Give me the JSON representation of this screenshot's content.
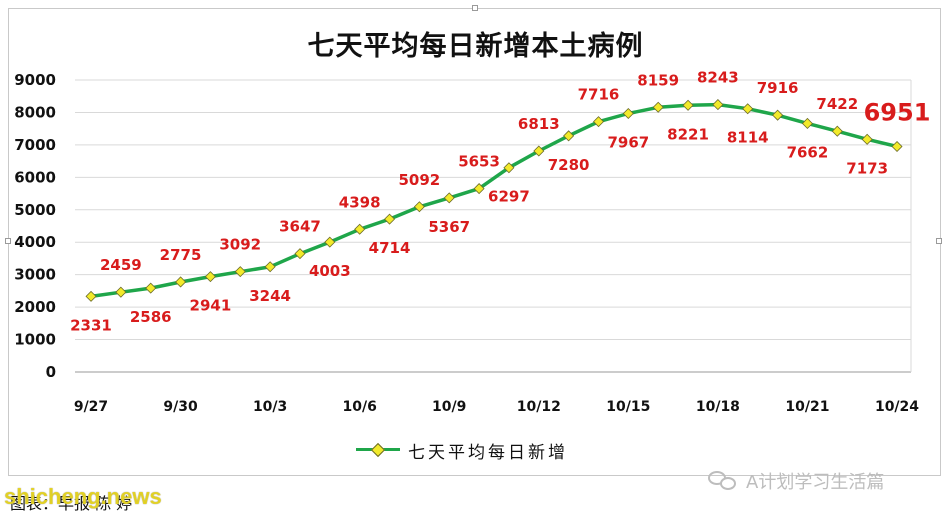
{
  "chart_data": {
    "type": "line",
    "title": "七天平均每日新增本土病例",
    "xlabel": "",
    "ylabel": "",
    "ylim": [
      0,
      9000
    ],
    "yticks": [
      "0",
      "1000",
      "2000",
      "3000",
      "4000",
      "5000",
      "6000",
      "7000",
      "8000",
      "9000"
    ],
    "x": [
      "9/27",
      "9/28",
      "9/29",
      "9/30",
      "10/1",
      "10/2",
      "10/3",
      "10/4",
      "10/5",
      "10/6",
      "10/7",
      "10/8",
      "10/9",
      "10/10",
      "10/11",
      "10/12",
      "10/13",
      "10/14",
      "10/15",
      "10/16",
      "10/17",
      "10/18",
      "10/19",
      "10/20",
      "10/21",
      "10/22",
      "10/23",
      "10/24"
    ],
    "xtick_labels": [
      "9/27",
      "9/30",
      "10/3",
      "10/6",
      "10/9",
      "10/12",
      "10/15",
      "10/18",
      "10/21",
      "10/24"
    ],
    "grid": "horizontal",
    "legend": "bottom",
    "series": [
      {
        "name": "七天平均每日新增",
        "color": "#1fa64a",
        "marker_color": "#f2ea2a",
        "values": [
          2331,
          2459,
          2586,
          2775,
          2941,
          3092,
          3244,
          3647,
          4003,
          4398,
          4714,
          5092,
          5367,
          5653,
          6297,
          6813,
          7280,
          7716,
          7967,
          8159,
          8221,
          8243,
          8114,
          7916,
          7662,
          7422,
          7173,
          6951
        ]
      }
    ],
    "label_color": "#d81c1c"
  },
  "source_text": "图表：早报 陈 婷",
  "watermark_left": "shicheng.news",
  "watermark_right": "A计划学习生活篇"
}
